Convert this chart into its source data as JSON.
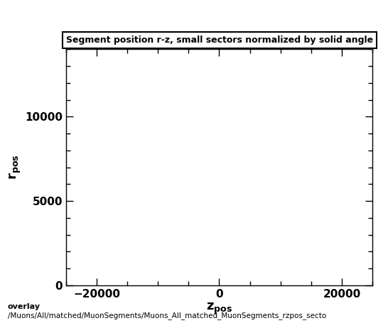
{
  "title": "Segment position r-z, small sectors normalized by solid angle",
  "xlabel": "z_pos",
  "ylabel": "r_pos",
  "xlim": [
    -25000,
    25000
  ],
  "ylim": [
    0,
    14000
  ],
  "xticks": [
    -20000,
    0,
    20000
  ],
  "yticks": [
    0,
    5000,
    10000
  ],
  "background_color": "#ffffff",
  "plot_bg_color": "#ffffff",
  "footer_line1": "overlay",
  "footer_line2": "/Muons/All/matched/MuonSegments/Muons_All_matched_MuonSegments_rzpos_secto",
  "legend_text": "Segment position r-z, small sectors normalized by solid angle",
  "fig_width": 5.46,
  "fig_height": 4.62,
  "dpi": 100
}
